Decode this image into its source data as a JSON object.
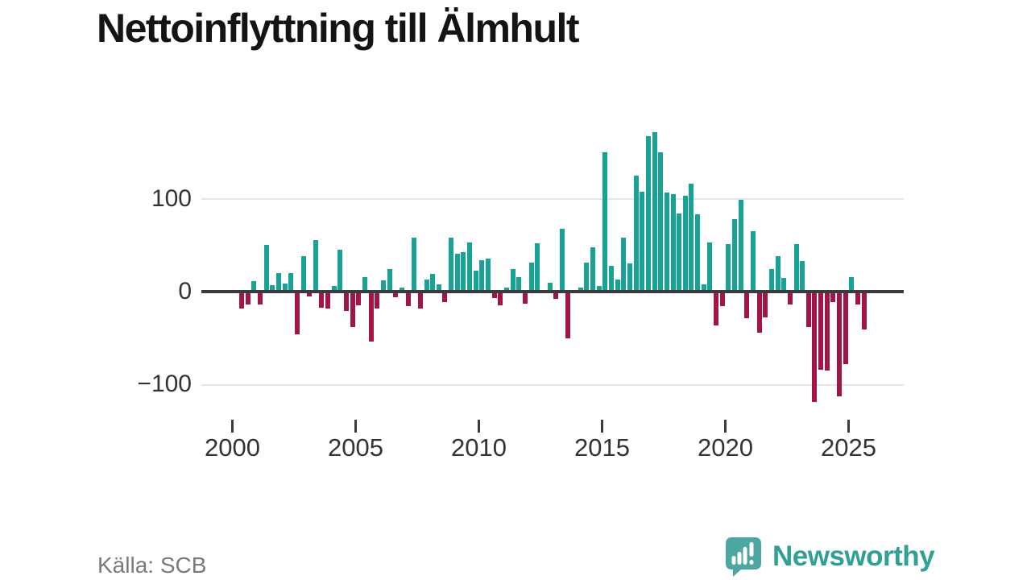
{
  "title": "Nettoinflyttning till Älmhult",
  "source": "Källa: SCB",
  "branding": {
    "name": "Newsworthy",
    "icon": "bar-chart-speech-bubble-icon"
  },
  "colors": {
    "positive": "#18a296",
    "negative": "#a21447",
    "axis": "#3b3b3b",
    "grid": "#e4e4e4",
    "tick_text": "#333333",
    "muted_text": "#7a7a7a",
    "brand": "#2fa093",
    "brand_mark": "#4ba7a0",
    "title_text": "#141414"
  },
  "chart_data": {
    "type": "bar",
    "title": "Nettoinflyttning till Älmhult",
    "xlabel": "",
    "ylabel": "",
    "legend": "none",
    "grid": "horizontal gridlines at 100 and -100 only",
    "ylim": [
      -150,
      190
    ],
    "y_ticks": [
      100,
      0,
      -100
    ],
    "y_tick_labels": [
      "100",
      "0",
      "−100"
    ],
    "x_ticks": [
      "2000",
      "2005",
      "2010",
      "2015",
      "2020",
      "2025"
    ],
    "x": [
      "2000-K2",
      "2000-K3",
      "2000-K4",
      "2001-K1",
      "2001-K2",
      "2001-K3",
      "2001-K4",
      "2002-K1",
      "2002-K2",
      "2002-K3",
      "2002-K4",
      "2003-K1",
      "2003-K2",
      "2003-K3",
      "2003-K4",
      "2004-K1",
      "2004-K2",
      "2004-K3",
      "2004-K4",
      "2005-K1",
      "2005-K2",
      "2005-K3",
      "2005-K4",
      "2006-K1",
      "2006-K2",
      "2006-K3",
      "2006-K4",
      "2007-K1",
      "2007-K2",
      "2007-K3",
      "2007-K4",
      "2008-K1",
      "2008-K2",
      "2008-K3",
      "2008-K4",
      "2009-K1",
      "2009-K2",
      "2009-K3",
      "2009-K4",
      "2010-K1",
      "2010-K2",
      "2010-K3",
      "2010-K4",
      "2011-K1",
      "2011-K2",
      "2011-K3",
      "2011-K4",
      "2012-K1",
      "2012-K2",
      "2012-K3",
      "2012-K4",
      "2013-K1",
      "2013-K2",
      "2013-K3",
      "2013-K4",
      "2014-K1",
      "2014-K2",
      "2014-K3",
      "2014-K4",
      "2015-K1",
      "2015-K2",
      "2015-K3",
      "2015-K4",
      "2016-K1",
      "2016-K2",
      "2016-K3",
      "2016-K4",
      "2017-K1",
      "2017-K2",
      "2017-K3",
      "2017-K4",
      "2018-K1",
      "2018-K2",
      "2018-K3",
      "2018-K4",
      "2019-K1",
      "2019-K2",
      "2019-K3",
      "2019-K4",
      "2020-K1",
      "2020-K2",
      "2020-K3",
      "2020-K4",
      "2021-K1",
      "2021-K2",
      "2021-K3",
      "2021-K4",
      "2022-K1",
      "2022-K2",
      "2022-K3",
      "2022-K4",
      "2023-K1",
      "2023-K2",
      "2023-K3",
      "2023-K4",
      "2024-K1",
      "2024-K2",
      "2024-K3",
      "2024-K4",
      "2025-K1",
      "2025-K2",
      "2025-K3"
    ],
    "values": [
      -18,
      -14,
      11,
      -14,
      50,
      7,
      20,
      9,
      20,
      -46,
      38,
      -5,
      56,
      -17,
      -18,
      6,
      45,
      -21,
      -38,
      -15,
      16,
      -54,
      -18,
      12,
      24,
      -6,
      4,
      -16,
      58,
      -18,
      13,
      19,
      8,
      -11,
      58,
      41,
      43,
      53,
      23,
      34,
      36,
      -7,
      -15,
      4,
      24,
      16,
      -13,
      31,
      52,
      2,
      10,
      -8,
      68,
      -50,
      -2,
      4,
      31,
      48,
      6,
      150,
      28,
      13,
      58,
      30,
      125,
      108,
      168,
      172,
      150,
      107,
      105,
      84,
      103,
      116,
      83,
      8,
      53,
      -36,
      -16,
      51,
      78,
      99,
      -29,
      65,
      -44,
      -28,
      24,
      38,
      15,
      -14,
      51,
      33,
      -38,
      -119,
      -84,
      -85,
      -11,
      -113,
      -78,
      16,
      -14,
      -41
    ]
  }
}
